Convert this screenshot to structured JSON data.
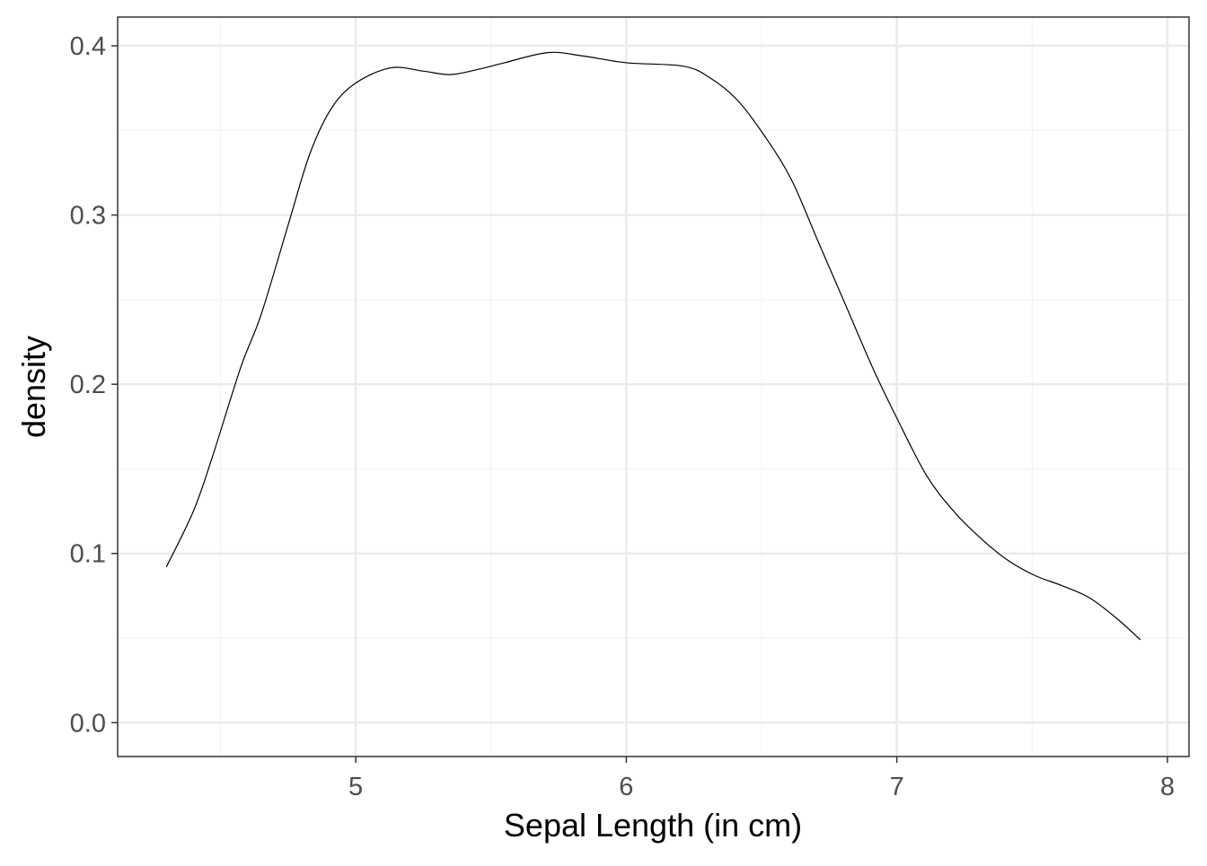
{
  "chart_data": {
    "type": "line",
    "title": "",
    "xlabel": "Sepal Length (in cm)",
    "ylabel": "density",
    "xlim": [
      4.12,
      8.08
    ],
    "ylim": [
      -0.02,
      0.417
    ],
    "x_ticks": [
      5,
      6,
      7,
      8
    ],
    "x_tick_labels": [
      "5",
      "6",
      "7",
      "8"
    ],
    "y_ticks": [
      0.0,
      0.1,
      0.2,
      0.3,
      0.4
    ],
    "y_tick_labels": [
      "0.0",
      "0.1",
      "0.2",
      "0.3",
      "0.4"
    ],
    "grid": true,
    "line_color": "#000000",
    "series": [
      {
        "x": [
          4.3,
          4.4,
          4.47,
          4.575,
          4.65,
          4.75,
          4.83,
          4.91,
          5.0,
          5.13,
          5.25,
          5.35,
          5.45,
          5.55,
          5.71,
          5.84,
          6.0,
          6.21,
          6.31,
          6.41,
          6.51,
          6.61,
          6.71,
          6.81,
          6.91,
          7.0,
          7.11,
          7.21,
          7.31,
          7.41,
          7.51,
          7.61,
          7.71,
          7.81,
          7.9
        ],
        "y": [
          0.092,
          0.125,
          0.157,
          0.21,
          0.241,
          0.294,
          0.336,
          0.363,
          0.378,
          0.387,
          0.385,
          0.383,
          0.386,
          0.39,
          0.396,
          0.394,
          0.39,
          0.388,
          0.381,
          0.368,
          0.347,
          0.321,
          0.284,
          0.247,
          0.21,
          0.18,
          0.146,
          0.125,
          0.109,
          0.096,
          0.087,
          0.081,
          0.074,
          0.062,
          0.049
        ]
      }
    ]
  }
}
